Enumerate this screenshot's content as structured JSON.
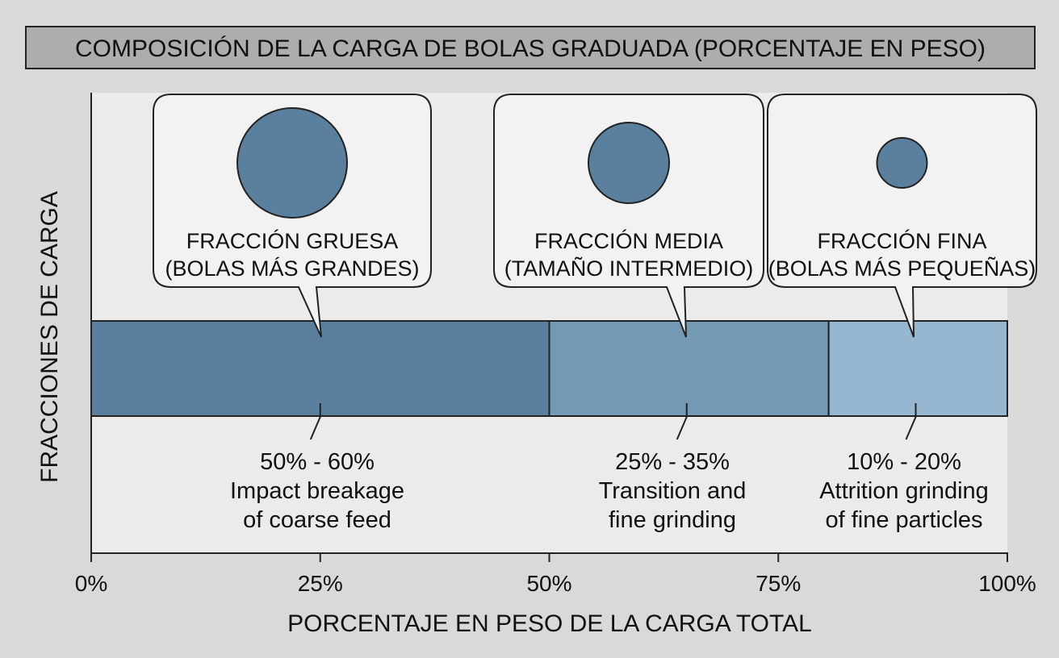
{
  "chart_data": {
    "type": "bar",
    "orientation": "horizontal-stacked",
    "title": "COMPOSICIÓN DE LA CARGA DE BOLAS GRADUADA (PORCENTAJE EN PESO)",
    "xlabel": "PORCENTAJE EN PESO DE LA CARGA TOTAL",
    "ylabel": "FRACCIONES DE CARGA",
    "xlim": [
      0,
      100
    ],
    "x_ticks": [
      0,
      25,
      50,
      75,
      100
    ],
    "x_tick_labels": [
      "0%",
      "25%",
      "50%",
      "75%",
      "100%"
    ],
    "grid": false,
    "segments": [
      {
        "start": 0,
        "end": 50,
        "color": "#5a809e",
        "ball_size": "large",
        "callout_line1": "FRACCIÓN GRUESA",
        "callout_line2": "(BOLAS MÁS GRANDES)",
        "pointer_x": 25,
        "range_label": "50% - 60%",
        "desc_line1": "Impact breakage",
        "desc_line2": "of coarse feed"
      },
      {
        "start": 50,
        "end": 80.5,
        "color": "#7399b5",
        "ball_size": "medium",
        "callout_line1": "FRACCIÓN MEDIA",
        "callout_line2": "(TAMAÑO INTERMEDIO)",
        "pointer_x": 65,
        "range_label": "25% - 35%",
        "desc_line1": "Transition and",
        "desc_line2": "fine grinding"
      },
      {
        "start": 80.5,
        "end": 100,
        "color": "#97b6cf",
        "ball_size": "small",
        "callout_line1": "FRACCIÓN FINA",
        "callout_line2": "(BOLAS MÁS PEQUEÑAS)",
        "pointer_x": 90,
        "range_label": "10% - 20%",
        "desc_line1": "Attrition grinding",
        "desc_line2": "of fine particles"
      }
    ]
  }
}
